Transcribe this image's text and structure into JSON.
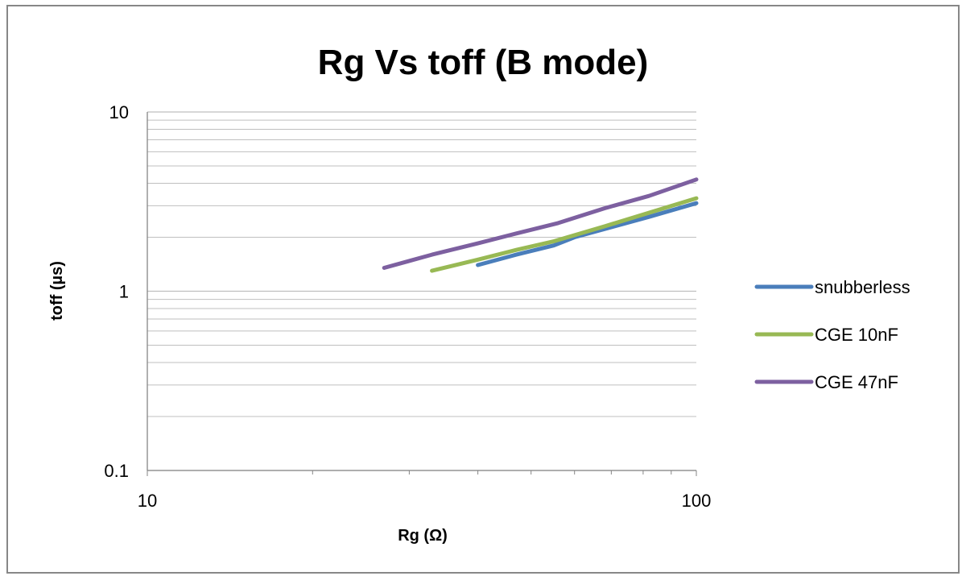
{
  "chart_data": {
    "type": "line",
    "title": "Rg Vs toff (B mode)",
    "xlabel": "Rg (Ω)",
    "ylabel": "toff (µs)",
    "x_scale": "log",
    "y_scale": "log",
    "xlim": [
      10,
      100
    ],
    "ylim": [
      0.1,
      10
    ],
    "x_ticks": [
      10,
      100
    ],
    "x_tick_labels": [
      "10",
      "100"
    ],
    "y_ticks": [
      0.1,
      1,
      10
    ],
    "y_tick_labels": [
      "0.1",
      "1",
      "10"
    ],
    "grid": "horizontal major and minor gridlines",
    "legend_position": "right",
    "series": [
      {
        "name": "snubberless",
        "color": "#4a7ebb",
        "x": [
          40,
          47,
          55,
          60,
          82,
          100
        ],
        "y": [
          1.4,
          1.6,
          1.8,
          2.0,
          2.6,
          3.1
        ]
      },
      {
        "name": "CGE 10nF",
        "color": "#98b954",
        "x": [
          33,
          40,
          47,
          55,
          68,
          100
        ],
        "y": [
          1.3,
          1.5,
          1.7,
          1.9,
          2.3,
          3.3
        ]
      },
      {
        "name": "CGE 47nF",
        "color": "#7d60a0",
        "x": [
          27,
          33,
          40,
          47,
          56,
          68,
          82,
          100
        ],
        "y": [
          1.35,
          1.6,
          1.85,
          2.1,
          2.4,
          2.9,
          3.4,
          4.2
        ]
      }
    ]
  }
}
